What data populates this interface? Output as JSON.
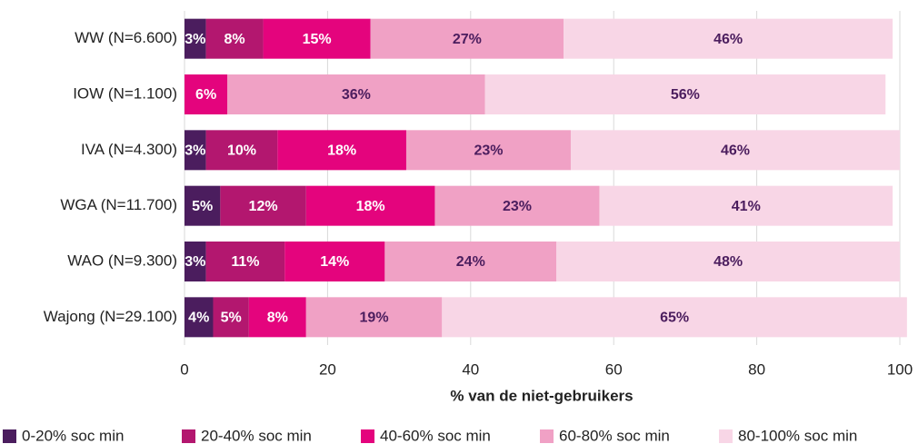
{
  "chart_data": {
    "type": "stacked_bar_horizontal",
    "categories": [
      "WW (N=6.600)",
      "IOW (N=1.100)",
      "IVA (N=4.300)",
      "WGA (N=11.700)",
      "WAO (N=9.300)",
      "Wajong (N=29.100)"
    ],
    "series": [
      {
        "name": "0-20% soc min",
        "color": "#4b1d5e",
        "label_color": "#ffffff",
        "values": [
          3,
          null,
          3,
          5,
          3,
          4
        ],
        "value_labels": [
          "3%",
          null,
          "3%",
          "5%",
          "3%",
          "4%"
        ]
      },
      {
        "name": "20-40% soc min",
        "color": "#b3176f",
        "label_color": "#ffffff",
        "values": [
          8,
          null,
          10,
          12,
          11,
          5
        ],
        "value_labels": [
          "8%",
          null,
          "10%",
          "12%",
          "11%",
          "5%"
        ]
      },
      {
        "name": "40-60% soc min",
        "color": "#e4047d",
        "label_color": "#ffffff",
        "values": [
          15,
          6,
          18,
          18,
          14,
          8
        ],
        "value_labels": [
          "15%",
          "6%",
          "18%",
          "18%",
          "14%",
          "8%"
        ]
      },
      {
        "name": "60-80% soc min",
        "color": "#f0a1c5",
        "label_color": "#4b1d5e",
        "values": [
          27,
          36,
          23,
          23,
          24,
          19
        ],
        "value_labels": [
          "27%",
          "36%",
          "23%",
          "23%",
          "24%",
          "19%"
        ]
      },
      {
        "name": "80-100% soc min",
        "color": "#f8d6e6",
        "label_color": "#4b1d5e",
        "values": [
          46,
          56,
          46,
          41,
          48,
          65
        ],
        "value_labels": [
          "46%",
          "56%",
          "46%",
          "41%",
          "48%",
          "65%"
        ]
      }
    ],
    "xlabel": "% van de niet-gebruikers",
    "xlim": [
      0,
      100
    ],
    "xticks": [
      0,
      20,
      40,
      60,
      80,
      100
    ],
    "grid": true
  }
}
